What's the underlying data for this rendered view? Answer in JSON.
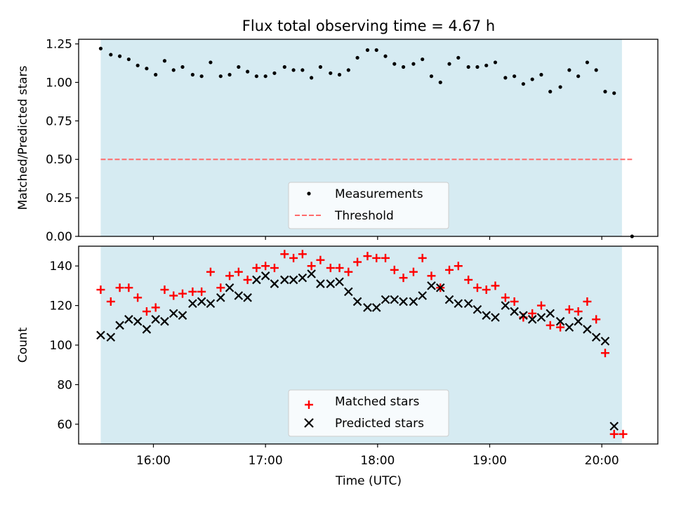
{
  "figure_title": "Flux total observing time = 4.67 h",
  "colors": {
    "span_fill": "#add8e6",
    "matched": "#ff0000",
    "predicted": "#000000",
    "measurement": "#000000",
    "threshold": "#ff6b6b"
  },
  "chart_data": [
    {
      "type": "scatter",
      "ylabel": "Matched/Predicted stars",
      "xlim_hours": [
        15.333,
        20.5
      ],
      "ylim": [
        0,
        1.28
      ],
      "yticks": [
        0.0,
        0.25,
        0.5,
        0.75,
        1.0,
        1.25
      ],
      "ytick_labels": [
        "0.00",
        "0.25",
        "0.50",
        "0.75",
        "1.00",
        "1.25"
      ],
      "xticks_hours": [
        16,
        17,
        18,
        19,
        20
      ],
      "shaded_span_hours": [
        15.53,
        20.18
      ],
      "legend": {
        "position": "lower center",
        "entries": [
          "Measurements",
          "Threshold"
        ]
      },
      "threshold": {
        "name": "Threshold",
        "value": 0.5,
        "x_range_hours": [
          15.53,
          20.27
        ]
      },
      "series": [
        {
          "name": "Measurements",
          "marker": "dot",
          "points": [
            [
              15.53,
              1.22
            ],
            [
              15.62,
              1.18
            ],
            [
              15.7,
              1.17
            ],
            [
              15.78,
              1.15
            ],
            [
              15.86,
              1.11
            ],
            [
              15.94,
              1.09
            ],
            [
              16.02,
              1.05
            ],
            [
              16.1,
              1.14
            ],
            [
              16.18,
              1.08
            ],
            [
              16.26,
              1.1
            ],
            [
              16.35,
              1.05
            ],
            [
              16.43,
              1.04
            ],
            [
              16.51,
              1.13
            ],
            [
              16.6,
              1.04
            ],
            [
              16.68,
              1.05
            ],
            [
              16.76,
              1.1
            ],
            [
              16.84,
              1.07
            ],
            [
              16.92,
              1.04
            ],
            [
              17.0,
              1.04
            ],
            [
              17.08,
              1.06
            ],
            [
              17.17,
              1.1
            ],
            [
              17.25,
              1.08
            ],
            [
              17.33,
              1.08
            ],
            [
              17.41,
              1.03
            ],
            [
              17.49,
              1.1
            ],
            [
              17.58,
              1.06
            ],
            [
              17.66,
              1.05
            ],
            [
              17.74,
              1.08
            ],
            [
              17.82,
              1.16
            ],
            [
              17.91,
              1.21
            ],
            [
              17.99,
              1.21
            ],
            [
              18.07,
              1.17
            ],
            [
              18.15,
              1.12
            ],
            [
              18.23,
              1.1
            ],
            [
              18.32,
              1.12
            ],
            [
              18.4,
              1.15
            ],
            [
              18.48,
              1.04
            ],
            [
              18.56,
              1.0
            ],
            [
              18.64,
              1.12
            ],
            [
              18.72,
              1.16
            ],
            [
              18.81,
              1.1
            ],
            [
              18.89,
              1.1
            ],
            [
              18.97,
              1.11
            ],
            [
              19.05,
              1.13
            ],
            [
              19.14,
              1.03
            ],
            [
              19.22,
              1.04
            ],
            [
              19.3,
              0.99
            ],
            [
              19.38,
              1.02
            ],
            [
              19.46,
              1.05
            ],
            [
              19.54,
              0.94
            ],
            [
              19.63,
              0.97
            ],
            [
              19.71,
              1.08
            ],
            [
              19.79,
              1.04
            ],
            [
              19.87,
              1.13
            ],
            [
              19.95,
              1.08
            ],
            [
              20.03,
              0.94
            ],
            [
              20.11,
              0.93
            ],
            [
              20.27,
              0.0
            ]
          ]
        }
      ]
    },
    {
      "type": "scatter",
      "xlabel": "Time (UTC)",
      "ylabel": "Count",
      "xlim_hours": [
        15.333,
        20.5
      ],
      "ylim": [
        50,
        150
      ],
      "yticks": [
        60,
        80,
        100,
        120,
        140
      ],
      "ytick_labels": [
        "60",
        "80",
        "100",
        "120",
        "140"
      ],
      "xticks_hours": [
        16,
        17,
        18,
        19,
        20
      ],
      "xtick_labels": [
        "16:00",
        "17:00",
        "18:00",
        "19:00",
        "20:00"
      ],
      "shaded_span_hours": [
        15.53,
        20.18
      ],
      "legend": {
        "position": "lower center",
        "entries": [
          "Matched stars",
          "Predicted stars"
        ]
      },
      "series": [
        {
          "name": "Matched stars",
          "marker": "plus",
          "points": [
            [
              15.53,
              128
            ],
            [
              15.62,
              122
            ],
            [
              15.7,
              129
            ],
            [
              15.78,
              129
            ],
            [
              15.86,
              124
            ],
            [
              15.94,
              117
            ],
            [
              16.02,
              119
            ],
            [
              16.1,
              128
            ],
            [
              16.18,
              125
            ],
            [
              16.26,
              126
            ],
            [
              16.35,
              127
            ],
            [
              16.43,
              127
            ],
            [
              16.51,
              137
            ],
            [
              16.6,
              129
            ],
            [
              16.68,
              135
            ],
            [
              16.76,
              137
            ],
            [
              16.84,
              133
            ],
            [
              16.92,
              139
            ],
            [
              17.0,
              140
            ],
            [
              17.08,
              139
            ],
            [
              17.17,
              146
            ],
            [
              17.25,
              144
            ],
            [
              17.33,
              146
            ],
            [
              17.41,
              140
            ],
            [
              17.49,
              143
            ],
            [
              17.58,
              139
            ],
            [
              17.66,
              139
            ],
            [
              17.74,
              137
            ],
            [
              17.82,
              142
            ],
            [
              17.91,
              145
            ],
            [
              17.99,
              144
            ],
            [
              18.07,
              144
            ],
            [
              18.15,
              138
            ],
            [
              18.23,
              134
            ],
            [
              18.32,
              137
            ],
            [
              18.4,
              144
            ],
            [
              18.48,
              135
            ],
            [
              18.56,
              129
            ],
            [
              18.64,
              138
            ],
            [
              18.72,
              140
            ],
            [
              18.81,
              133
            ],
            [
              18.89,
              129
            ],
            [
              18.97,
              128
            ],
            [
              19.05,
              130
            ],
            [
              19.14,
              124
            ],
            [
              19.22,
              122
            ],
            [
              19.3,
              114
            ],
            [
              19.38,
              116
            ],
            [
              19.46,
              120
            ],
            [
              19.54,
              110
            ],
            [
              19.63,
              109
            ],
            [
              19.71,
              118
            ],
            [
              19.79,
              117
            ],
            [
              19.87,
              122
            ],
            [
              19.95,
              113
            ],
            [
              20.03,
              96
            ],
            [
              20.11,
              55
            ],
            [
              20.19,
              55
            ]
          ]
        },
        {
          "name": "Predicted stars",
          "marker": "x",
          "points": [
            [
              15.53,
              105
            ],
            [
              15.62,
              104
            ],
            [
              15.7,
              110
            ],
            [
              15.78,
              113
            ],
            [
              15.86,
              112
            ],
            [
              15.94,
              108
            ],
            [
              16.02,
              113
            ],
            [
              16.1,
              112
            ],
            [
              16.18,
              116
            ],
            [
              16.26,
              115
            ],
            [
              16.35,
              121
            ],
            [
              16.43,
              122
            ],
            [
              16.51,
              121
            ],
            [
              16.6,
              124
            ],
            [
              16.68,
              129
            ],
            [
              16.76,
              125
            ],
            [
              16.84,
              124
            ],
            [
              16.92,
              133
            ],
            [
              17.0,
              135
            ],
            [
              17.08,
              131
            ],
            [
              17.17,
              133
            ],
            [
              17.25,
              133
            ],
            [
              17.33,
              134
            ],
            [
              17.41,
              136
            ],
            [
              17.49,
              131
            ],
            [
              17.58,
              131
            ],
            [
              17.66,
              132
            ],
            [
              17.74,
              127
            ],
            [
              17.82,
              122
            ],
            [
              17.91,
              119
            ],
            [
              17.99,
              119
            ],
            [
              18.07,
              123
            ],
            [
              18.15,
              123
            ],
            [
              18.23,
              122
            ],
            [
              18.32,
              122
            ],
            [
              18.4,
              125
            ],
            [
              18.48,
              130
            ],
            [
              18.56,
              129
            ],
            [
              18.64,
              123
            ],
            [
              18.72,
              121
            ],
            [
              18.81,
              121
            ],
            [
              18.89,
              118
            ],
            [
              18.97,
              115
            ],
            [
              19.05,
              114
            ],
            [
              19.14,
              120
            ],
            [
              19.22,
              117
            ],
            [
              19.3,
              115
            ],
            [
              19.38,
              113
            ],
            [
              19.46,
              114
            ],
            [
              19.54,
              116
            ],
            [
              19.63,
              112
            ],
            [
              19.71,
              109
            ],
            [
              19.79,
              112
            ],
            [
              19.87,
              108
            ],
            [
              19.95,
              104
            ],
            [
              20.03,
              102
            ],
            [
              20.11,
              59
            ]
          ]
        }
      ]
    }
  ]
}
